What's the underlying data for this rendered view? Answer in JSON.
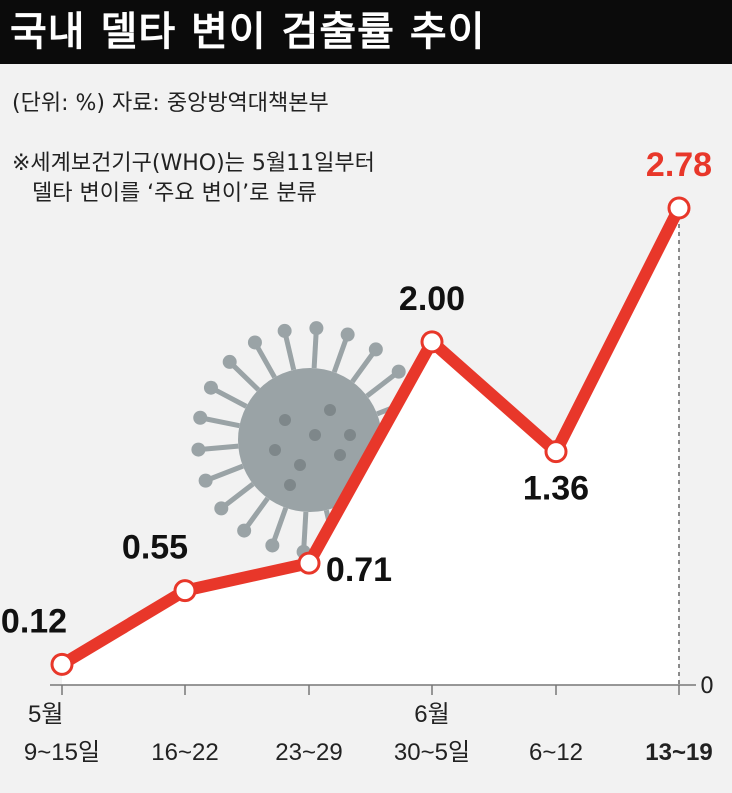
{
  "header": {
    "title": "국내 델타 변이 검출률 추이"
  },
  "source_line": "(단위: %)  자료: 중앙방역대책본부",
  "footnote": {
    "line1": "※세계보건기구(WHO)는 5월11일부터",
    "line2": "델타 변이를 ‘주요 변이’로 분류"
  },
  "colors": {
    "line": "#e8372a",
    "highlight": "#e8372a",
    "header_bg": "#0b0b0b",
    "virus": "#9aa3a6"
  },
  "icons": [
    "virus-illustration"
  ],
  "chart_data": {
    "type": "line",
    "unit": "%",
    "categories": [
      "9~15일",
      "16~22",
      "23~29",
      "30~5일",
      "6~12",
      "13~19"
    ],
    "month_labels": [
      {
        "index": 0,
        "label": "5월"
      },
      {
        "index": 3,
        "label": "6월"
      }
    ],
    "values": [
      0.12,
      0.55,
      0.71,
      2.0,
      1.36,
      2.78
    ],
    "value_labels": [
      "0.12",
      "0.55",
      "0.71",
      "2.00",
      "1.36",
      "2.78"
    ],
    "axis_zero_label": "0",
    "ylim": [
      0,
      2.78
    ],
    "highlight_index": 5,
    "grid": false
  }
}
